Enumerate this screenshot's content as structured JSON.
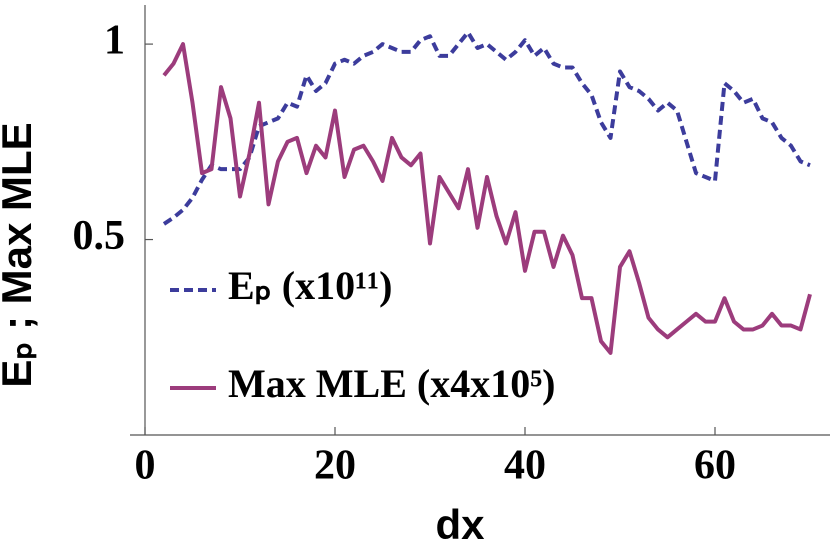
{
  "chart_data": {
    "type": "line",
    "xlabel": "dx",
    "ylabel": "Eₚ ; Max MLE",
    "x": [
      2,
      3,
      4,
      5,
      6,
      7,
      8,
      9,
      10,
      11,
      12,
      13,
      14,
      15,
      16,
      17,
      18,
      19,
      20,
      21,
      22,
      23,
      24,
      25,
      26,
      27,
      28,
      29,
      30,
      31,
      32,
      33,
      34,
      35,
      36,
      37,
      38,
      39,
      40,
      41,
      42,
      43,
      44,
      45,
      46,
      47,
      48,
      49,
      50,
      51,
      52,
      53,
      54,
      55,
      56,
      57,
      58,
      59,
      60,
      61,
      62,
      63,
      64,
      65,
      66,
      67,
      68,
      69,
      70
    ],
    "series": [
      {
        "name": "Eₚ (x10¹¹)",
        "color": "#3c3c9c",
        "dash": true,
        "values": [
          0.54,
          0.556,
          0.576,
          0.607,
          0.653,
          0.69,
          0.68,
          0.68,
          0.68,
          0.71,
          0.79,
          0.8,
          0.81,
          0.85,
          0.84,
          0.92,
          0.88,
          0.9,
          0.95,
          0.96,
          0.95,
          0.97,
          0.98,
          1.0,
          0.99,
          0.98,
          0.98,
          1.01,
          1.02,
          0.97,
          0.97,
          1.0,
          1.03,
          0.99,
          1.0,
          0.98,
          0.96,
          0.98,
          1.01,
          0.97,
          0.99,
          0.95,
          0.94,
          0.94,
          0.9,
          0.87,
          0.8,
          0.76,
          0.93,
          0.89,
          0.88,
          0.86,
          0.83,
          0.85,
          0.83,
          0.75,
          0.67,
          0.66,
          0.65,
          0.9,
          0.88,
          0.85,
          0.86,
          0.81,
          0.8,
          0.76,
          0.74,
          0.7,
          0.69
        ]
      },
      {
        "name": "Max MLE (x4x10⁵)",
        "color": "#9c3c7c",
        "dash": false,
        "values": [
          0.92,
          0.95,
          1.0,
          0.85,
          0.67,
          0.68,
          0.89,
          0.81,
          0.61,
          0.72,
          0.85,
          0.59,
          0.7,
          0.75,
          0.76,
          0.67,
          0.74,
          0.71,
          0.83,
          0.66,
          0.73,
          0.74,
          0.7,
          0.65,
          0.76,
          0.71,
          0.69,
          0.72,
          0.49,
          0.66,
          0.62,
          0.58,
          0.68,
          0.53,
          0.66,
          0.56,
          0.49,
          0.57,
          0.42,
          0.52,
          0.52,
          0.43,
          0.51,
          0.46,
          0.35,
          0.35,
          0.24,
          0.21,
          0.43,
          0.47,
          0.39,
          0.3,
          0.27,
          0.25,
          0.27,
          0.29,
          0.31,
          0.29,
          0.29,
          0.35,
          0.29,
          0.27,
          0.27,
          0.28,
          0.31,
          0.28,
          0.28,
          0.27,
          0.36
        ]
      }
    ],
    "xlim": [
      0,
      72
    ],
    "ylim": [
      0,
      1.1
    ],
    "xticks": [
      0,
      20,
      40,
      60
    ],
    "yticks": [
      0.5,
      1
    ],
    "legend": "lower left"
  }
}
